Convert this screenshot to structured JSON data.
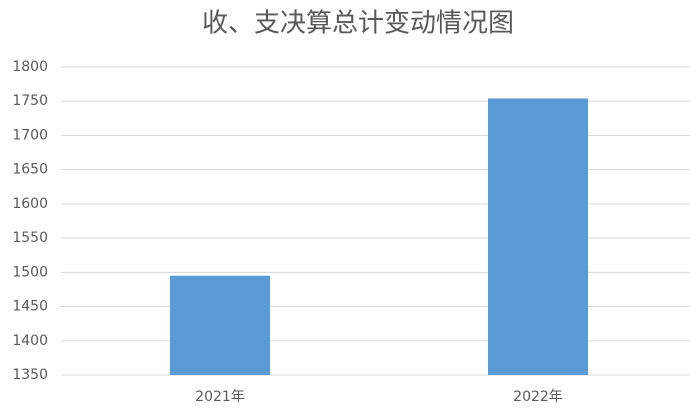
{
  "chart_data": {
    "type": "bar",
    "title": "收、支决算总计变动情况图",
    "categories": [
      "2021年",
      "2022年"
    ],
    "values": [
      1495,
      1754
    ],
    "color": "#5b9bd5",
    "ylim": [
      1350,
      1800
    ],
    "yticks": [
      1350,
      1400,
      1450,
      1500,
      1550,
      1600,
      1650,
      1700,
      1750,
      1800
    ],
    "grid": true
  }
}
